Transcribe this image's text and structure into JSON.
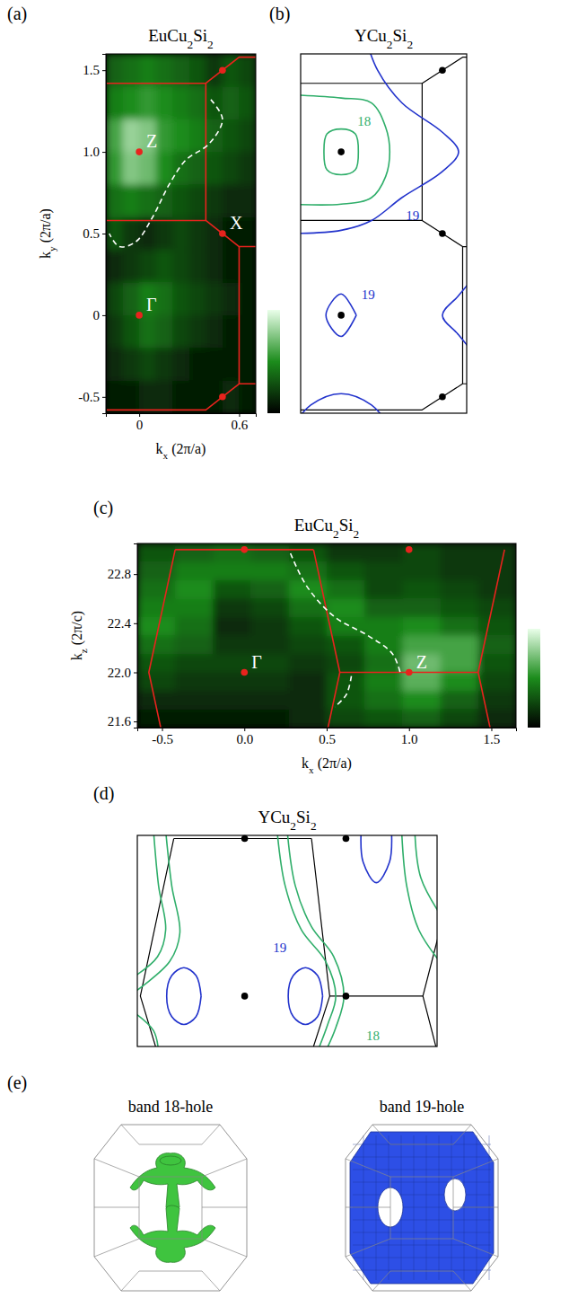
{
  "chart_data": [
    {
      "type": "heatmap",
      "label": "(a)",
      "title": "EuCu2Si2",
      "x_label": "kx (2π/a)",
      "y_label": "ky (2π/a)",
      "xlim": [
        -0.2,
        0.7
      ],
      "ylim": [
        -0.6,
        1.6
      ],
      "xticks": [
        0,
        0.6
      ],
      "yticks": [
        -0.5,
        0,
        0.5,
        {
          "value": 1,
          "label": "1.0"
        },
        1.5
      ],
      "x": [
        -0.15,
        -0.05,
        0.05,
        0.15,
        0.25,
        0.35,
        0.45,
        0.55,
        0.65
      ],
      "y": [
        1.5,
        1.3,
        1.1,
        0.9,
        0.7,
        0.5,
        0.3,
        0.1,
        -0.1,
        -0.3,
        -0.5
      ],
      "z": [
        [
          0.35,
          0.4,
          0.45,
          0.4,
          0.35,
          0.3,
          0.2,
          0.3,
          0.25
        ],
        [
          0.45,
          0.5,
          0.55,
          0.5,
          0.45,
          0.4,
          0.3,
          0.35,
          0.3
        ],
        [
          0.6,
          0.8,
          0.75,
          0.55,
          0.5,
          0.45,
          0.35,
          0.3,
          0.25
        ],
        [
          0.55,
          0.75,
          0.7,
          0.5,
          0.4,
          0.35,
          0.3,
          0.25,
          0.2
        ],
        [
          0.4,
          0.45,
          0.4,
          0.35,
          0.3,
          0.25,
          0.2,
          0.15,
          0.15
        ],
        [
          0.3,
          0.2,
          0.15,
          0.2,
          0.25,
          0.2,
          0.15,
          0.1,
          0.1
        ],
        [
          0.15,
          0.2,
          0.25,
          0.3,
          0.25,
          0.2,
          0.15,
          0.1,
          0.1
        ],
        [
          0.25,
          0.35,
          0.45,
          0.4,
          0.3,
          0.25,
          0.2,
          0.15,
          0.1
        ],
        [
          0.2,
          0.3,
          0.4,
          0.35,
          0.25,
          0.2,
          0.15,
          0.1,
          0.1
        ],
        [
          0.15,
          0.2,
          0.25,
          0.2,
          0.15,
          0.1,
          0.1,
          0.1,
          0.1
        ],
        [
          0.1,
          0.1,
          0.15,
          0.15,
          0.1,
          0.1,
          0.1,
          0.15,
          0.1
        ]
      ],
      "colorbar": {
        "range": [
          0,
          1
        ],
        "colors": [
          "#000000",
          "#1c8c1c",
          "#eaffea"
        ]
      },
      "bz_lines": {
        "color": "#e8231d",
        "lines": [
          {
            "x": [
              -0.2,
              0.4,
              0.5,
              0.6,
              0.7
            ],
            "y": [
              1.42,
              1.42,
              1.5,
              1.58,
              1.58
            ]
          },
          {
            "x": [
              0.4,
              0.4
            ],
            "y": [
              1.42,
              0.58
            ]
          },
          {
            "x": [
              -0.2,
              0.4,
              0.5,
              0.6,
              0.7
            ],
            "y": [
              0.58,
              0.58,
              0.5,
              0.42,
              0.42
            ]
          },
          {
            "x": [
              0.6,
              0.6
            ],
            "y": [
              0.42,
              -0.42
            ]
          },
          {
            "x": [
              0.7,
              0.6,
              0.5,
              0.4,
              -0.2
            ],
            "y": [
              -0.42,
              -0.42,
              -0.5,
              -0.58,
              -0.58
            ]
          }
        ]
      },
      "curves": [
        {
          "x": [
            0.43,
            0.5,
            0.42,
            0.28,
            0.18,
            0.08,
            -0.02,
            -0.12,
            -0.18
          ],
          "y": [
            1.32,
            1.2,
            1.05,
            0.95,
            0.8,
            0.6,
            0.45,
            0.42,
            0.5
          ],
          "color": "#ffffff",
          "line_style": "dashed"
        }
      ],
      "points": {
        "color": "#e8231d",
        "items": [
          {
            "x": 0,
            "y": 1,
            "label": "Z"
          },
          {
            "x": 0,
            "y": 0,
            "label": "Γ"
          },
          {
            "x": 0.5,
            "y": 0.5,
            "label": "X"
          },
          {
            "x": 0.5,
            "y": 1.5
          },
          {
            "x": 0.5,
            "y": -0.5
          }
        ]
      }
    },
    {
      "type": "contour",
      "label": "(b)",
      "title": "YCu2Si2",
      "tick_labels": false,
      "xlim": [
        -0.2,
        0.62
      ],
      "ylim": [
        -0.6,
        1.6
      ],
      "bz_lines": {
        "color": "#000000",
        "lines": [
          {
            "x": [
              -0.2,
              0.4,
              0.5,
              0.6,
              0.7
            ],
            "y": [
              1.42,
              1.42,
              1.5,
              1.58,
              1.58
            ]
          },
          {
            "x": [
              0.4,
              0.4
            ],
            "y": [
              1.42,
              0.58
            ]
          },
          {
            "x": [
              -0.2,
              0.4,
              0.5,
              0.6,
              0.7
            ],
            "y": [
              0.58,
              0.58,
              0.5,
              0.42,
              0.42
            ]
          },
          {
            "x": [
              0.6,
              0.6
            ],
            "y": [
              0.42,
              -0.42
            ]
          },
          {
            "x": [
              0.7,
              0.6,
              0.5,
              0.4,
              -0.2
            ],
            "y": [
              -0.42,
              -0.42,
              -0.5,
              -0.58,
              -0.58
            ]
          }
        ]
      },
      "contours": [
        {
          "x": [
            0.085,
            0.07,
            0,
            -0.07,
            -0.085,
            -0.07,
            0,
            0.07,
            0.085
          ],
          "y": [
            1.0,
            1.11,
            1.14,
            1.11,
            1.0,
            0.89,
            0.86,
            0.89,
            1.0
          ],
          "color": "#2fae6a"
        },
        {
          "x": [
            -0.25,
            0,
            0.15,
            0.22,
            0.24,
            0.22,
            0.15,
            0,
            -0.25
          ],
          "y": [
            1.35,
            1.33,
            1.3,
            1.15,
            1.0,
            0.85,
            0.72,
            0.68,
            0.68
          ],
          "color": "#2fae6a"
        },
        {
          "x": [
            0.12,
            0.18,
            0.3,
            0.5,
            0.58,
            0.5,
            0.3,
            0.15,
            0,
            -0.25
          ],
          "y": [
            1.7,
            1.5,
            1.3,
            1.12,
            1.0,
            0.88,
            0.72,
            0.58,
            0.52,
            0.5
          ],
          "color": "#2233cc"
        },
        {
          "x": [
            0.075,
            0,
            -0.075,
            0,
            0.075
          ],
          "y": [
            0,
            0.13,
            0,
            -0.13,
            0
          ],
          "color": "#2233cc"
        },
        {
          "x": [
            0.7,
            0.58,
            0.5,
            0.58,
            0.7
          ],
          "y": [
            0.3,
            0.12,
            0,
            -0.12,
            -0.3
          ],
          "color": "#2233cc"
        },
        {
          "x": [
            -0.25,
            -0.15,
            0,
            0.15,
            0.25
          ],
          "y": [
            -0.7,
            -0.55,
            -0.48,
            -0.55,
            -0.7
          ],
          "color": "#2233cc"
        }
      ],
      "annotations": [
        {
          "text": "18",
          "x": 0.08,
          "y": 1.16,
          "color": "#2fae6a"
        },
        {
          "text": "19",
          "x": 0.32,
          "y": 0.58,
          "color": "#2233cc"
        },
        {
          "text": "19",
          "x": 0.1,
          "y": 0.1,
          "color": "#2233cc"
        }
      ],
      "points": {
        "color": "#000000",
        "items": [
          {
            "x": 0,
            "y": 1
          },
          {
            "x": 0,
            "y": 0
          },
          {
            "x": 0.5,
            "y": 0.5
          },
          {
            "x": 0.5,
            "y": 1.5
          },
          {
            "x": 0.5,
            "y": -0.5
          }
        ]
      }
    },
    {
      "type": "heatmap",
      "label": "(c)",
      "title": "EuCu2Si2",
      "x_label": "kx (2π/a)",
      "y_label": "kz (2π/c)",
      "xlim": [
        -0.65,
        1.65
      ],
      "ylim": [
        21.55,
        23.05
      ],
      "xticks": [
        -0.5,
        {
          "value": 0,
          "label": "0.0"
        },
        0.5,
        {
          "value": 1,
          "label": "1.0"
        },
        1.5
      ],
      "yticks": [
        21.6,
        {
          "value": 22,
          "label": "22.0"
        },
        22.4,
        22.8
      ],
      "x": [
        -0.535,
        -0.305,
        -0.075,
        0.155,
        0.385,
        0.615,
        0.845,
        1.075,
        1.305,
        1.535
      ],
      "y": [
        22.975,
        22.825,
        22.675,
        22.525,
        22.375,
        22.225,
        22.075,
        21.925,
        21.775,
        21.625
      ],
      "z": [
        [
          0.3,
          0.35,
          0.4,
          0.35,
          0.3,
          0.2,
          0.2,
          0.25,
          0.2,
          0.2
        ],
        [
          0.35,
          0.45,
          0.45,
          0.45,
          0.4,
          0.3,
          0.25,
          0.25,
          0.2,
          0.2
        ],
        [
          0.4,
          0.5,
          0.3,
          0.35,
          0.5,
          0.4,
          0.25,
          0.3,
          0.25,
          0.2
        ],
        [
          0.45,
          0.45,
          0.2,
          0.25,
          0.4,
          0.5,
          0.35,
          0.35,
          0.3,
          0.25
        ],
        [
          0.5,
          0.4,
          0.15,
          0.2,
          0.3,
          0.45,
          0.45,
          0.5,
          0.4,
          0.3
        ],
        [
          0.4,
          0.35,
          0.2,
          0.2,
          0.25,
          0.3,
          0.45,
          0.6,
          0.6,
          0.35
        ],
        [
          0.3,
          0.25,
          0.25,
          0.25,
          0.2,
          0.25,
          0.4,
          0.7,
          0.6,
          0.3
        ],
        [
          0.25,
          0.2,
          0.2,
          0.2,
          0.15,
          0.3,
          0.45,
          0.65,
          0.5,
          0.25
        ],
        [
          0.15,
          0.15,
          0.15,
          0.15,
          0.15,
          0.3,
          0.4,
          0.5,
          0.35,
          0.2
        ],
        [
          0.1,
          0.1,
          0.1,
          0.1,
          0.15,
          0.25,
          0.3,
          0.35,
          0.25,
          0.15
        ]
      ],
      "colorbar": {
        "range": [
          0,
          1
        ],
        "colors": [
          "#000000",
          "#1c8c1c",
          "#eaffea"
        ]
      },
      "bz_lines": {
        "color": "#e8231d",
        "lines": [
          {
            "x": [
              -0.42,
              -0.58,
              -0.42
            ],
            "y": [
              23,
              22,
              21
            ]
          },
          {
            "x": [
              -0.42,
              0.42
            ],
            "y": [
              23,
              23
            ]
          },
          {
            "x": [
              0.42,
              0.58,
              0.42
            ],
            "y": [
              23,
              22,
              21
            ]
          },
          {
            "x": [
              0.58,
              1.42
            ],
            "y": [
              22,
              22
            ]
          },
          {
            "x": [
              1.58,
              1.42,
              1.58
            ],
            "y": [
              23,
              22,
              21
            ]
          }
        ]
      },
      "curves": [
        {
          "x": [
            0.28,
            0.38,
            0.55,
            0.75,
            0.9,
            0.95
          ],
          "y": [
            22.97,
            22.7,
            22.45,
            22.3,
            22.15,
            21.98
          ],
          "color": "#ffffff",
          "line_style": "dashed"
        },
        {
          "x": [
            0.65,
            0.62,
            0.55
          ],
          "y": [
            21.97,
            21.82,
            21.72
          ],
          "color": "#ffffff",
          "line_style": "dashed"
        }
      ],
      "points": {
        "color": "#e8231d",
        "items": [
          {
            "x": 0,
            "y": 22,
            "label": "Γ"
          },
          {
            "x": 1,
            "y": 22,
            "label": "Z"
          },
          {
            "x": 0,
            "y": 23
          },
          {
            "x": 1,
            "y": 23
          }
        ]
      }
    },
    {
      "type": "contour",
      "label": "(d)",
      "title": "YCu2Si2",
      "tick_labels": false,
      "xlim": [
        -1.06,
        1.9
      ],
      "ylim": [
        21.68,
        23.02
      ],
      "bz_lines": {
        "color": "#000000",
        "lines": [
          {
            "x": [
              -0.7,
              0.66
            ],
            "y": [
              23,
              23
            ]
          },
          {
            "x": [
              -0.7,
              -1.03,
              -0.88
            ],
            "y": [
              23,
              22,
              21.68
            ]
          },
          {
            "x": [
              0.66,
              0.84,
              0.68
            ],
            "y": [
              23,
              22,
              21.68
            ]
          },
          {
            "x": [
              0.84,
              1.76
            ],
            "y": [
              22,
              22
            ]
          },
          {
            "x": [
              1.92,
              1.76,
              1.92
            ],
            "y": [
              22.4,
              22,
              21.6
            ]
          }
        ]
      },
      "contours": [
        {
          "x": [
            -0.43,
            -0.48,
            -0.6,
            -0.72,
            -0.77,
            -0.72,
            -0.6,
            -0.48,
            -0.43
          ],
          "y": [
            22,
            22.13,
            22.18,
            22.13,
            22,
            21.87,
            21.82,
            21.87,
            22
          ],
          "color": "#2233cc"
        },
        {
          "x": [
            0.77,
            0.72,
            0.6,
            0.48,
            0.43,
            0.48,
            0.6,
            0.72,
            0.77
          ],
          "y": [
            22,
            22.13,
            22.18,
            22.13,
            22,
            21.87,
            21.82,
            21.87,
            22
          ],
          "color": "#2233cc"
        },
        {
          "x": [
            1.15,
            1.17,
            1.3,
            1.43,
            1.45
          ],
          "y": [
            23.05,
            22.85,
            22.72,
            22.85,
            23.05
          ],
          "color": "#2233cc"
        },
        {
          "x": [
            -0.9,
            -0.85,
            -0.78,
            -0.86,
            -1.1
          ],
          "y": [
            23.05,
            22.7,
            22.42,
            22.25,
            22.12
          ],
          "color": "#2fae6a"
        },
        {
          "x": [
            -0.78,
            -0.72,
            -0.64,
            -0.74,
            -1.1
          ],
          "y": [
            23.05,
            22.7,
            22.4,
            22.22,
            22.02
          ],
          "color": "#2fae6a"
        },
        {
          "x": [
            -1.1,
            -0.9,
            -0.85
          ],
          "y": [
            21.9,
            21.78,
            21.65
          ],
          "color": "#2fae6a"
        },
        {
          "x": [
            0.32,
            0.4,
            0.56,
            0.8,
            0.9,
            0.82,
            0.72
          ],
          "y": [
            23.05,
            22.7,
            22.42,
            22.22,
            22.0,
            21.82,
            21.65
          ],
          "color": "#2fae6a"
        },
        {
          "x": [
            0.42,
            0.5,
            0.66,
            0.88,
            0.98,
            0.9,
            0.8
          ],
          "y": [
            23.05,
            22.7,
            22.44,
            22.25,
            22.0,
            21.8,
            21.65
          ],
          "color": "#2fae6a"
        },
        {
          "x": [
            1.55,
            1.6,
            1.72,
            1.95
          ],
          "y": [
            23.05,
            22.7,
            22.42,
            22.2
          ],
          "color": "#2fae6a"
        },
        {
          "x": [
            1.68,
            1.74,
            1.95
          ],
          "y": [
            23.05,
            22.75,
            22.5
          ],
          "color": "#2fae6a"
        }
      ],
      "annotations": [
        {
          "text": "19",
          "x": 0.28,
          "y": 22.28,
          "color": "#2233cc"
        },
        {
          "text": "18",
          "x": 1.2,
          "y": 21.72,
          "color": "#2fae6a"
        }
      ],
      "points": {
        "color": "#000000",
        "items": [
          {
            "x": 0,
            "y": 23
          },
          {
            "x": 1,
            "y": 23
          },
          {
            "x": 0,
            "y": 22
          },
          {
            "x": 1,
            "y": 22
          }
        ]
      }
    },
    {
      "type": "surface",
      "label": "(e)",
      "titles": [
        "band 18-hole",
        "band 19-hole"
      ],
      "colors": [
        "#3fc43f",
        "#2d4fe6"
      ]
    }
  ]
}
